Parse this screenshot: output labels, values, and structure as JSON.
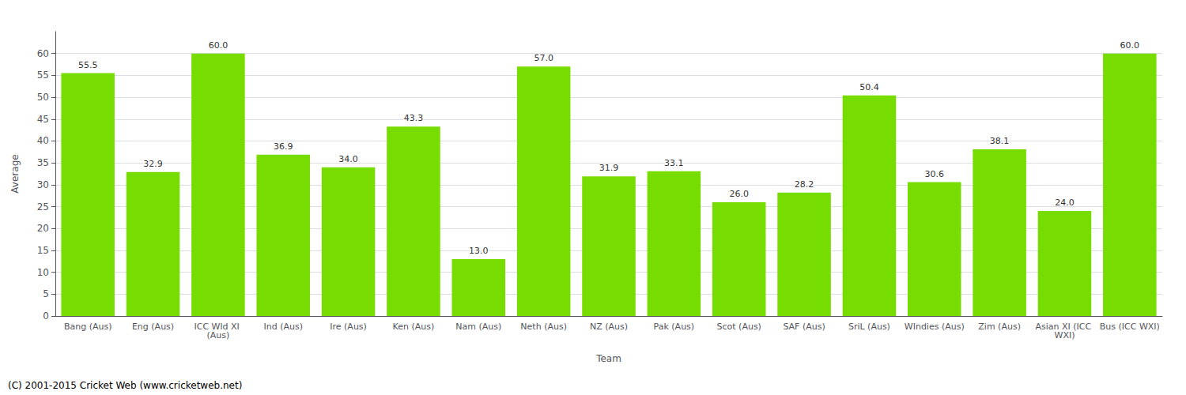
{
  "chart_data": {
    "type": "bar",
    "xlabel": "Team",
    "ylabel": "Average",
    "categories": [
      "Bang (Aus)",
      "Eng (Aus)",
      "ICC Wld XI (Aus)",
      "Ind (Aus)",
      "Ire (Aus)",
      "Ken (Aus)",
      "Nam (Aus)",
      "Neth (Aus)",
      "NZ (Aus)",
      "Pak (Aus)",
      "Scot (Aus)",
      "SAF (Aus)",
      "SriL (Aus)",
      "WIndies (Aus)",
      "Zim (Aus)",
      "Asian XI (ICC WXI)",
      "Bus (ICC WXI)"
    ],
    "values": [
      55.5,
      32.9,
      60.0,
      36.9,
      34.0,
      43.3,
      13.0,
      57.0,
      31.9,
      33.1,
      26.0,
      28.2,
      50.4,
      30.6,
      38.1,
      24.0,
      60.0
    ],
    "value_labels": [
      "55.5",
      "32.9",
      "60.0",
      "36.9",
      "34.0",
      "43.3",
      "13.0",
      "57.0",
      "31.9",
      "33.1",
      "26.0",
      "28.2",
      "50.4",
      "30.6",
      "38.1",
      "24.0",
      "60.0"
    ],
    "data_labels": true,
    "color": "#77DD00",
    "ylim": [
      0,
      65
    ],
    "yticks": [
      0,
      5,
      10,
      15,
      20,
      25,
      30,
      35,
      40,
      45,
      50,
      55,
      60
    ],
    "grid": true,
    "annotations": [
      "(C) 2001-2015 Cricket Web (www.cricketweb.net)"
    ]
  }
}
